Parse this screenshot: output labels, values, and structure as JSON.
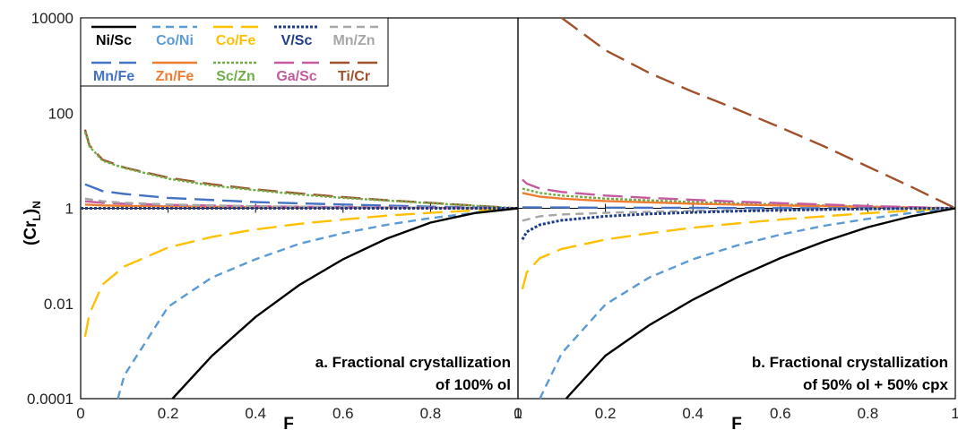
{
  "chart_data": {
    "type": "line",
    "y_scale": "log",
    "ylim": [
      0.0001,
      10000
    ],
    "xlim": [
      0,
      1
    ],
    "ylabel": "(Cr",
    "ylabel_sub": "L",
    "ylabel_close": ")",
    "ylabel_sub2": "N",
    "xlabel": "F",
    "y_ticks": [
      "0.0001",
      "0.01",
      "1",
      "100",
      "10000"
    ],
    "y_tick_values": [
      0.0001,
      0.01,
      1,
      100,
      10000
    ],
    "x_ticks": [
      "0",
      "0.2",
      "0.4",
      "0.6",
      "0.8",
      "1"
    ],
    "x_tick_values": [
      0,
      0.2,
      0.4,
      0.6,
      0.8,
      1
    ],
    "legend_position": "top-left",
    "legend": [
      {
        "name": "Ni/Sc",
        "color": "#000000",
        "dash": "solid"
      },
      {
        "name": "Co/Ni",
        "color": "#5b9bd5",
        "dash": "dashed"
      },
      {
        "name": "Co/Fe",
        "color": "#ffc000",
        "dash": "longdash"
      },
      {
        "name": "V/Sc",
        "color": "#1f3c88",
        "dash": "dotted"
      },
      {
        "name": "Mn/Zn",
        "color": "#a6a6a6",
        "dash": "dashed"
      },
      {
        "name": "Mn/Fe",
        "color": "#4472c4",
        "dash": "longdash"
      },
      {
        "name": "Zn/Fe",
        "color": "#ed7d31",
        "dash": "solid"
      },
      {
        "name": "Sc/Zn",
        "color": "#70ad47",
        "dash": "dotted"
      },
      {
        "name": "Ga/Sc",
        "color": "#c55a9e",
        "dash": "longdash"
      },
      {
        "name": "Ti/Cr",
        "color": "#a0522d",
        "dash": "longdash"
      }
    ],
    "panels": [
      {
        "label_line1": "a. Fractional crystallization",
        "label_line2": "of 100% ol",
        "series": [
          {
            "name": "Ni/Sc",
            "x": [
              0.21,
              0.3,
              0.4,
              0.5,
              0.6,
              0.7,
              0.8,
              0.9,
              1.0
            ],
            "y": [
              0.0001,
              0.00079,
              0.0052,
              0.0245,
              0.085,
              0.23,
              0.5,
              0.79,
              1.0
            ]
          },
          {
            "name": "Co/Ni",
            "x": [
              0.085,
              0.1,
              0.2,
              0.3,
              0.4,
              0.5,
              0.6,
              0.7,
              0.8,
              0.9,
              1.0
            ],
            "y": [
              0.0001,
              0.00031,
              0.0085,
              0.035,
              0.085,
              0.18,
              0.3,
              0.45,
              0.62,
              0.8,
              1.0
            ]
          },
          {
            "name": "Co/Fe",
            "x": [
              0.01,
              0.02,
              0.05,
              0.1,
              0.2,
              0.3,
              0.4,
              0.5,
              0.6,
              0.7,
              0.8,
              0.9,
              1.0
            ],
            "y": [
              0.002,
              0.006,
              0.025,
              0.06,
              0.15,
              0.25,
              0.36,
              0.47,
              0.58,
              0.7,
              0.8,
              0.9,
              1.0
            ]
          },
          {
            "name": "V/Sc",
            "x": [
              0,
              0.2,
              0.4,
              0.6,
              0.8,
              1.0
            ],
            "y": [
              1.0,
              1.0,
              1.0,
              1.0,
              1.0,
              1.0
            ]
          },
          {
            "name": "Mn/Zn",
            "x": [
              0.01,
              0.05,
              0.1,
              0.2,
              0.4,
              0.6,
              0.8,
              1.0
            ],
            "y": [
              1.6,
              1.4,
              1.3,
              1.2,
              1.1,
              1.06,
              1.03,
              1.0
            ]
          },
          {
            "name": "Mn/Fe",
            "x": [
              0.01,
              0.05,
              0.1,
              0.2,
              0.4,
              0.6,
              0.8,
              1.0
            ],
            "y": [
              3.2,
              2.3,
              2.0,
              1.65,
              1.35,
              1.2,
              1.08,
              1.0
            ]
          },
          {
            "name": "Zn/Fe",
            "x": [
              0.01,
              0.05,
              0.1,
              0.2,
              0.4,
              0.6,
              0.8,
              1.0
            ],
            "y": [
              1.2,
              1.15,
              1.12,
              1.1,
              1.06,
              1.04,
              1.02,
              1.0
            ]
          },
          {
            "name": "Sc/Zn",
            "x": [
              0.01,
              0.02,
              0.05,
              0.1,
              0.2,
              0.3,
              0.4,
              0.5,
              0.6,
              0.7,
              0.8,
              0.9,
              1.0
            ],
            "y": [
              40,
              20,
              10,
              7,
              4.2,
              3.0,
              2.4,
              1.95,
              1.65,
              1.45,
              1.28,
              1.13,
              1.0
            ]
          },
          {
            "name": "Ga/Sc",
            "x": [
              0.01,
              0.05,
              0.1,
              0.2,
              0.4,
              0.6,
              0.8,
              1.0
            ],
            "y": [
              1.4,
              1.3,
              1.25,
              1.18,
              1.1,
              1.06,
              1.03,
              1.0
            ]
          },
          {
            "name": "Ti/Cr",
            "x": [
              0.01,
              0.02,
              0.05,
              0.1,
              0.2,
              0.3,
              0.4,
              0.5,
              0.6,
              0.7,
              0.8,
              0.9,
              1.0
            ],
            "y": [
              45,
              21,
              10.5,
              7.2,
              4.4,
              3.2,
              2.5,
              2.05,
              1.72,
              1.48,
              1.3,
              1.14,
              1.0
            ]
          }
        ]
      },
      {
        "label_line1": "b. Fractional crystallization",
        "label_line2": "of 50% ol + 50% cpx",
        "series": [
          {
            "name": "Ni/Sc",
            "x": [
              0.11,
              0.2,
              0.3,
              0.4,
              0.5,
              0.6,
              0.7,
              0.8,
              0.9,
              1.0
            ],
            "y": [
              0.0001,
              0.0008,
              0.0035,
              0.012,
              0.035,
              0.09,
              0.2,
              0.4,
              0.68,
              1.0
            ]
          },
          {
            "name": "Co/Ni",
            "x": [
              0.05,
              0.1,
              0.2,
              0.3,
              0.4,
              0.5,
              0.6,
              0.7,
              0.8,
              0.9,
              1.0
            ],
            "y": [
              0.0001,
              0.0009,
              0.0095,
              0.035,
              0.085,
              0.165,
              0.28,
              0.43,
              0.6,
              0.8,
              1.0
            ]
          },
          {
            "name": "Co/Fe",
            "x": [
              0.01,
              0.02,
              0.05,
              0.1,
              0.2,
              0.3,
              0.4,
              0.5,
              0.6,
              0.7,
              0.8,
              0.9,
              1.0
            ],
            "y": [
              0.02,
              0.045,
              0.09,
              0.14,
              0.22,
              0.3,
              0.39,
              0.48,
              0.58,
              0.68,
              0.79,
              0.89,
              1.0
            ]
          },
          {
            "name": "V/Sc",
            "x": [
              0.01,
              0.02,
              0.05,
              0.1,
              0.2,
              0.3,
              0.4,
              0.5,
              0.6,
              0.7,
              0.8,
              0.9,
              1.0
            ],
            "y": [
              0.22,
              0.32,
              0.45,
              0.56,
              0.68,
              0.76,
              0.82,
              0.87,
              0.91,
              0.94,
              0.97,
              0.99,
              1.0
            ]
          },
          {
            "name": "Mn/Zn",
            "x": [
              0.01,
              0.05,
              0.1,
              0.2,
              0.4,
              0.6,
              0.8,
              1.0
            ],
            "y": [
              0.55,
              0.68,
              0.74,
              0.8,
              0.88,
              0.93,
              0.97,
              1.0
            ]
          },
          {
            "name": "Mn/Fe",
            "x": [
              0.01,
              0.05,
              0.1,
              0.2,
              0.4,
              0.6,
              0.8,
              1.0
            ],
            "y": [
              1.05,
              1.04,
              1.04,
              1.03,
              1.02,
              1.01,
              1.0,
              1.0
            ]
          },
          {
            "name": "Zn/Fe",
            "x": [
              0.01,
              0.05,
              0.1,
              0.2,
              0.4,
              0.6,
              0.8,
              1.0
            ],
            "y": [
              2.1,
              1.75,
              1.6,
              1.42,
              1.25,
              1.15,
              1.07,
              1.0
            ]
          },
          {
            "name": "Sc/Zn",
            "x": [
              0.01,
              0.05,
              0.1,
              0.2,
              0.4,
              0.6,
              0.8,
              1.0
            ],
            "y": [
              2.6,
              2.1,
              1.85,
              1.6,
              1.35,
              1.2,
              1.09,
              1.0
            ]
          },
          {
            "name": "Ga/Sc",
            "x": [
              0.01,
              0.02,
              0.05,
              0.1,
              0.2,
              0.3,
              0.4,
              0.5,
              0.6,
              0.7,
              0.8,
              0.9,
              1.0
            ],
            "y": [
              4.0,
              3.3,
              2.6,
              2.2,
              1.85,
              1.65,
              1.5,
              1.38,
              1.28,
              1.2,
              1.12,
              1.06,
              1.0
            ]
          },
          {
            "name": "Ti/Cr",
            "x": [
              0.1,
              0.2,
              0.3,
              0.4,
              0.5,
              0.6,
              0.7,
              0.8,
              0.9,
              1.0
            ],
            "y": [
              10000,
              2100,
              700,
              280,
              120,
              50,
              20,
              7.5,
              2.8,
              1.0
            ]
          }
        ]
      }
    ]
  }
}
